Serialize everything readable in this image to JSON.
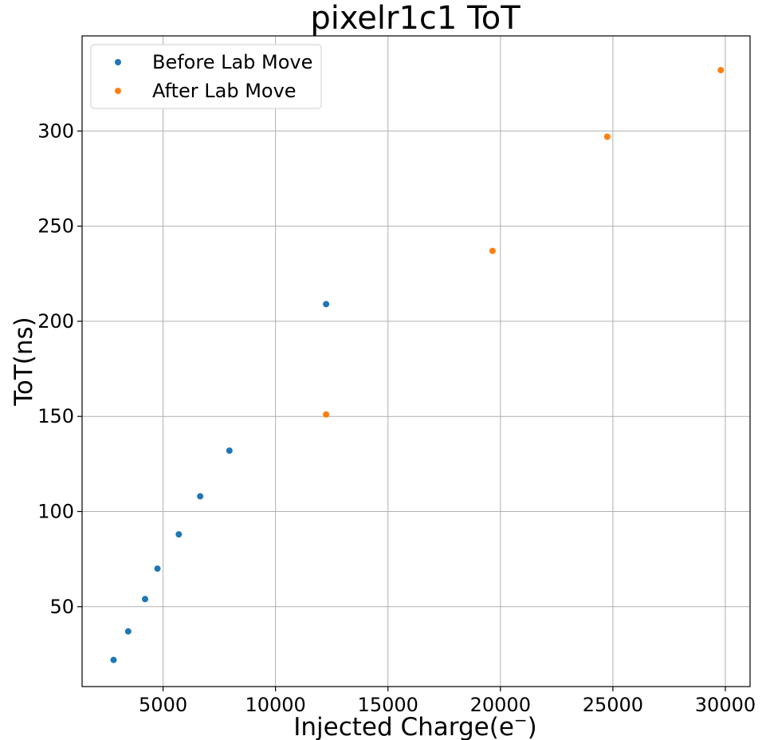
{
  "chart_data": {
    "type": "scatter",
    "title": "pixelr1c1 ToT",
    "xlabel": "Injected Charge(e$^-$)",
    "xlabel_main": "Injected Charge(e",
    "xlabel_sup": "−",
    "xlabel_close": ")",
    "ylabel": "ToT(ns)",
    "xlim": [
      1400,
      31100
    ],
    "ylim": [
      8,
      350
    ],
    "xticks": [
      5000,
      10000,
      15000,
      20000,
      25000,
      30000
    ],
    "yticks": [
      50,
      100,
      150,
      200,
      250,
      300
    ],
    "grid": true,
    "legend_position": "top-left",
    "series": [
      {
        "name": "Before Lab Move",
        "color": "#1f77b4",
        "points": [
          {
            "x": 2800,
            "y": 22
          },
          {
            "x": 3450,
            "y": 37
          },
          {
            "x": 4200,
            "y": 54
          },
          {
            "x": 4750,
            "y": 70
          },
          {
            "x": 5700,
            "y": 88
          },
          {
            "x": 6650,
            "y": 108
          },
          {
            "x": 7950,
            "y": 132
          },
          {
            "x": 12250,
            "y": 209
          }
        ]
      },
      {
        "name": "After Lab Move",
        "color": "#ff7f0e",
        "points": [
          {
            "x": 12250,
            "y": 151
          },
          {
            "x": 19650,
            "y": 237
          },
          {
            "x": 24750,
            "y": 297
          },
          {
            "x": 29800,
            "y": 332
          }
        ]
      }
    ]
  }
}
